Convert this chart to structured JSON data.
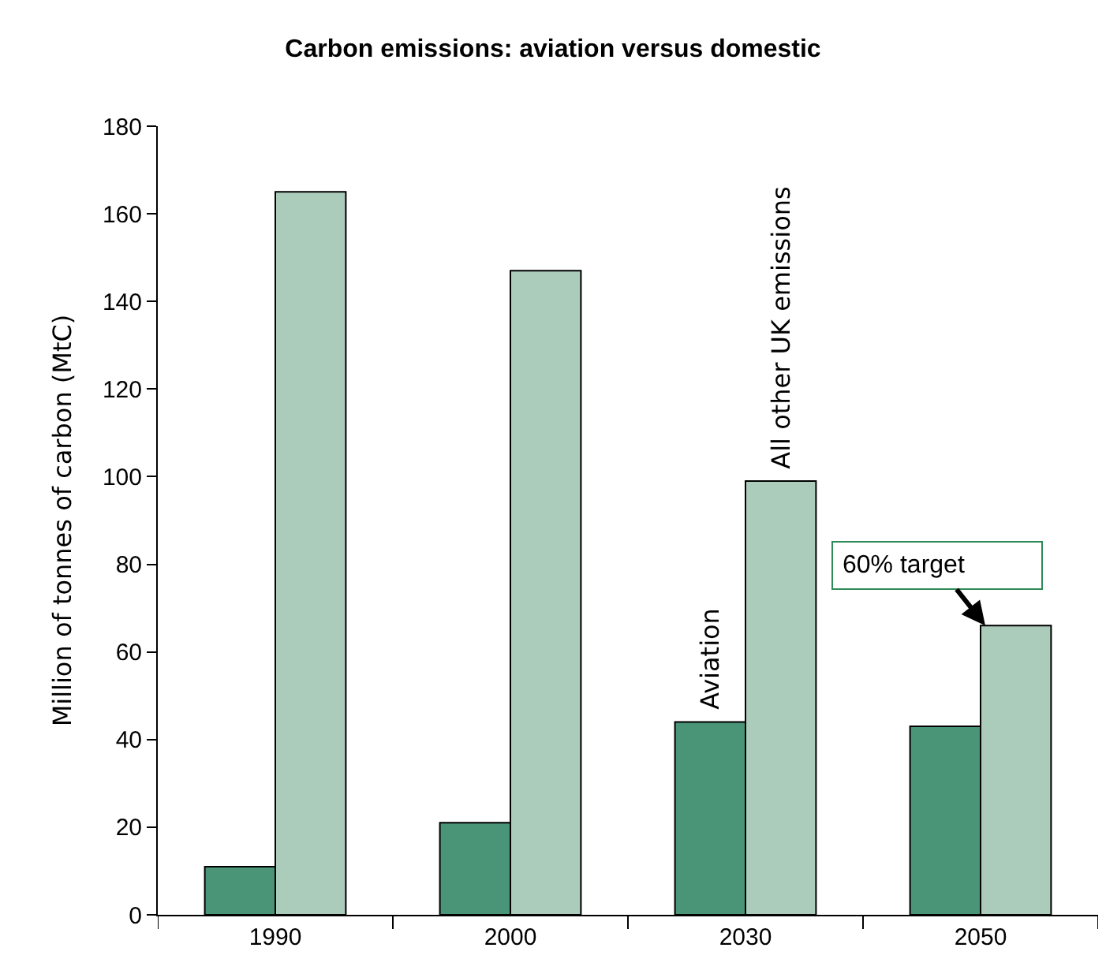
{
  "chart_data": {
    "type": "bar",
    "title": "Carbon emissions: aviation versus domestic",
    "ylabel": "Million of tonnes of carbon (MtC)",
    "categories": [
      "1990",
      "2000",
      "2030",
      "2050"
    ],
    "series": [
      {
        "name": "Aviation",
        "color": "#4a9478",
        "values": [
          11,
          21,
          44,
          43
        ]
      },
      {
        "name": "All other UK emissions",
        "color": "#abcbbb",
        "values": [
          165,
          147,
          99,
          66
        ]
      }
    ],
    "ylim": [
      0,
      180
    ],
    "yticks": [
      0,
      20,
      40,
      60,
      80,
      100,
      120,
      140,
      160,
      180
    ],
    "legend": false,
    "annotations": [
      {
        "text": "60% target",
        "x": "2050",
        "y": 66
      }
    ]
  }
}
